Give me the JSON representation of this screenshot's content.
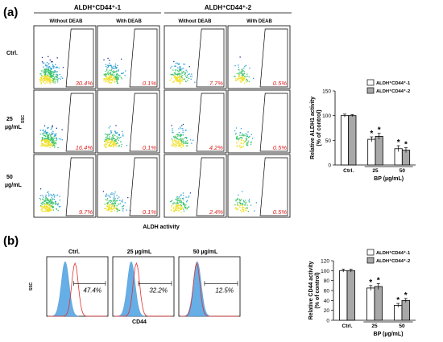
{
  "panel_a": {
    "label": "(a)",
    "groups": [
      "ALDH⁺CD44⁺-1",
      "ALDH⁺CD44⁺-2"
    ],
    "conditions": [
      "Without DEAB",
      "With DEAB",
      "Without DEAB",
      "With DEAB"
    ],
    "rows": [
      "Ctrl.",
      "25 µg/mL",
      "50 µg/mL"
    ],
    "ssc_label": "SSC",
    "x_axis_label": "ALDH activity",
    "percentages": [
      [
        "30.4%",
        "0.1%",
        "7.7%",
        "0.5%"
      ],
      [
        "16.4%",
        "0.1%",
        "4.2%",
        "0.5%"
      ],
      [
        "9.7%",
        "0.1%",
        "2.4%",
        "0.5%"
      ]
    ]
  },
  "panel_b": {
    "label": "(b)",
    "titles": [
      "Ctrl.",
      "25  µg/mL",
      "50  µg/mL"
    ],
    "percentages": [
      "47.4%",
      "32.2%",
      "12.5%"
    ],
    "ssc_label": "SSC",
    "x_axis_label": "CD44"
  },
  "chart_data": [
    {
      "type": "bar",
      "ylabel": "Relative ALDH1 activity\n(% of control)",
      "xlabel": "BP (µg/mL)",
      "categories": [
        "Ctrl.",
        "25",
        "50"
      ],
      "ylim": [
        0,
        150
      ],
      "yticks": [
        0,
        50,
        100,
        150
      ],
      "series": [
        {
          "name": "ALDH⁺CD44⁺-1",
          "color": "#ffffff",
          "values": [
            100,
            52,
            33
          ],
          "errors": [
            3,
            5,
            6
          ],
          "sig": [
            false,
            true,
            true
          ]
        },
        {
          "name": "ALDH⁺CD44⁺-2",
          "color": "#a8a8a8",
          "values": [
            100,
            58,
            30
          ],
          "errors": [
            2,
            6,
            5
          ],
          "sig": [
            false,
            true,
            true
          ]
        }
      ],
      "sig_mark": "*",
      "legend": "top-right"
    },
    {
      "type": "bar",
      "ylabel": "Relative CD44 activity\n(% of control)",
      "xlabel": "BP (µg/mL)",
      "categories": [
        "Ctrl.",
        "25",
        "50"
      ],
      "ylim": [
        0,
        120
      ],
      "yticks": [
        0,
        20,
        40,
        60,
        80,
        100,
        120
      ],
      "series": [
        {
          "name": "ALDH⁺CD44⁺-1",
          "color": "#ffffff",
          "values": [
            100,
            65,
            30
          ],
          "errors": [
            3,
            5,
            4
          ],
          "sig": [
            false,
            true,
            true
          ]
        },
        {
          "name": "ALDH⁺CD44⁺-2",
          "color": "#a8a8a8",
          "values": [
            100,
            68,
            40
          ],
          "errors": [
            3,
            6,
            4
          ],
          "sig": [
            false,
            true,
            true
          ]
        }
      ],
      "sig_mark": "*",
      "legend": "top-right"
    }
  ]
}
